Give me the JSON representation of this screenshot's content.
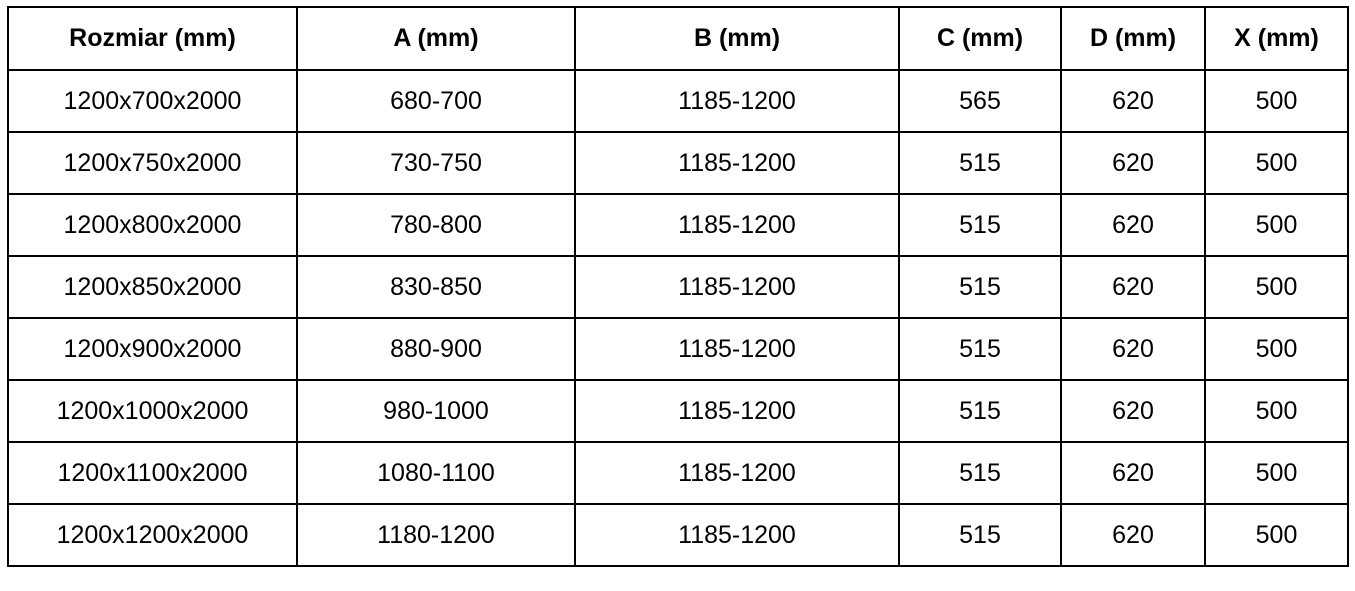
{
  "headers": [
    "Rozmiar (mm)",
    "A (mm)",
    "B (mm)",
    "C (mm)",
    "D (mm)",
    "X (mm)"
  ],
  "rows": [
    [
      "1200x700x2000",
      "680-700",
      "1185-1200",
      "565",
      "620",
      "500"
    ],
    [
      "1200x750x2000",
      "730-750",
      "1185-1200",
      "515",
      "620",
      "500"
    ],
    [
      "1200x800x2000",
      "780-800",
      "1185-1200",
      "515",
      "620",
      "500"
    ],
    [
      "1200x850x2000",
      "830-850",
      "1185-1200",
      "515",
      "620",
      "500"
    ],
    [
      "1200x900x2000",
      "880-900",
      "1185-1200",
      "515",
      "620",
      "500"
    ],
    [
      "1200x1000x2000",
      "980-1000",
      "1185-1200",
      "515",
      "620",
      "500"
    ],
    [
      "1200x1100x2000",
      "1080-1100",
      "1185-1200",
      "515",
      "620",
      "500"
    ],
    [
      "1200x1200x2000",
      "1180-1200",
      "1185-1200",
      "515",
      "620",
      "500"
    ]
  ]
}
